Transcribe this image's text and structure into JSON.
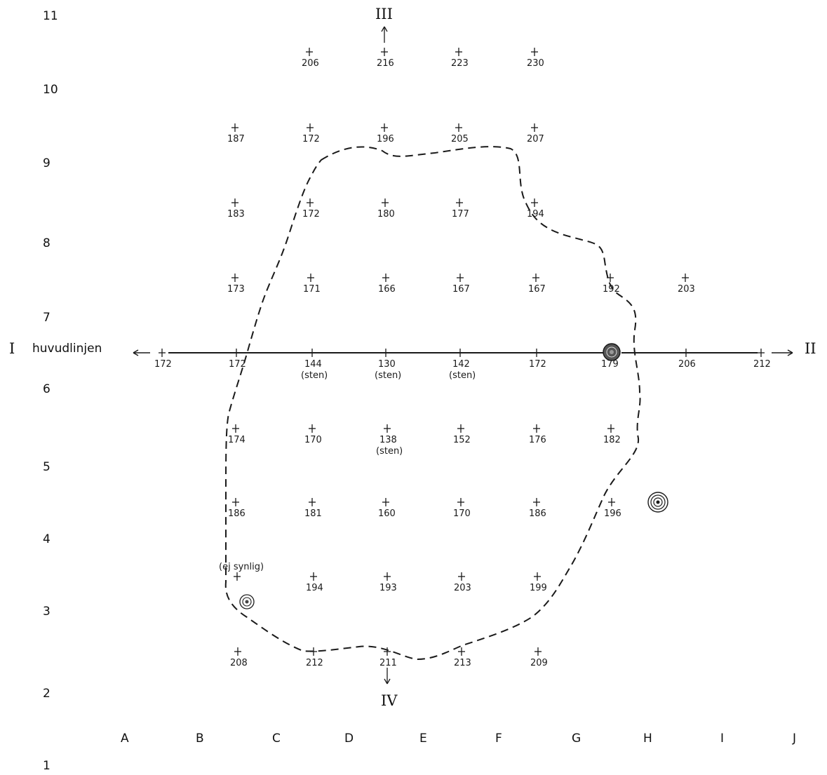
{
  "row_labels": [
    "11",
    "10",
    "9",
    "8",
    "7",
    "6",
    "5",
    "4",
    "3",
    "2",
    "1"
  ],
  "column_labels": [
    "A",
    "B",
    "C",
    "D",
    "E",
    "F",
    "G",
    "H",
    "I",
    "J"
  ],
  "main_line": {
    "left_roman": "I",
    "label": "huvudlinjen",
    "right_roman": "II"
  },
  "direction_markers": {
    "top": "III",
    "bottom": "IV"
  },
  "measurements": [
    {
      "id": "m-206a",
      "value": "206"
    },
    {
      "id": "m-216",
      "value": "216"
    },
    {
      "id": "m-223",
      "value": "223"
    },
    {
      "id": "m-230",
      "value": "230"
    },
    {
      "id": "m-187",
      "value": "187"
    },
    {
      "id": "m-172a",
      "value": "172"
    },
    {
      "id": "m-196a",
      "value": "196"
    },
    {
      "id": "m-205",
      "value": "205"
    },
    {
      "id": "m-207",
      "value": "207"
    },
    {
      "id": "m-183",
      "value": "183"
    },
    {
      "id": "m-172b",
      "value": "172"
    },
    {
      "id": "m-180",
      "value": "180"
    },
    {
      "id": "m-177",
      "value": "177"
    },
    {
      "id": "m-194a",
      "value": "194"
    },
    {
      "id": "m-173",
      "value": "173"
    },
    {
      "id": "m-171",
      "value": "171"
    },
    {
      "id": "m-166",
      "value": "166"
    },
    {
      "id": "m-167a",
      "value": "167"
    },
    {
      "id": "m-167b",
      "value": "167"
    },
    {
      "id": "m-192",
      "value": "192"
    },
    {
      "id": "m-203a",
      "value": "203"
    },
    {
      "id": "m-172c",
      "value": "172"
    },
    {
      "id": "m-172d",
      "value": "172"
    },
    {
      "id": "m-144",
      "value": "144",
      "note": "(sten)"
    },
    {
      "id": "m-130",
      "value": "130",
      "note": "(sten)"
    },
    {
      "id": "m-142",
      "value": "142",
      "note": "(sten)"
    },
    {
      "id": "m-172e",
      "value": "172"
    },
    {
      "id": "m-179",
      "value": "179"
    },
    {
      "id": "m-206b",
      "value": "206"
    },
    {
      "id": "m-212a",
      "value": "212"
    },
    {
      "id": "m-174",
      "value": "174"
    },
    {
      "id": "m-170a",
      "value": "170"
    },
    {
      "id": "m-138",
      "value": "138",
      "note": "(sten)"
    },
    {
      "id": "m-152",
      "value": "152"
    },
    {
      "id": "m-176",
      "value": "176"
    },
    {
      "id": "m-182",
      "value": "182"
    },
    {
      "id": "m-186a",
      "value": "186"
    },
    {
      "id": "m-181",
      "value": "181"
    },
    {
      "id": "m-160",
      "value": "160"
    },
    {
      "id": "m-170b",
      "value": "170"
    },
    {
      "id": "m-186b",
      "value": "186"
    },
    {
      "id": "m-196b",
      "value": "196"
    },
    {
      "id": "m-ej",
      "note_above": "(ej synlig)"
    },
    {
      "id": "m-194b",
      "value": "194"
    },
    {
      "id": "m-193",
      "value": "193"
    },
    {
      "id": "m-203b",
      "value": "203"
    },
    {
      "id": "m-199",
      "value": "199"
    },
    {
      "id": "m-208",
      "value": "208"
    },
    {
      "id": "m-212b",
      "value": "212"
    },
    {
      "id": "m-211",
      "value": "211"
    },
    {
      "id": "m-213",
      "value": "213"
    },
    {
      "id": "m-209",
      "value": "209"
    }
  ],
  "symbols": [
    "tree-symbol",
    "tree-symbol",
    "tree-symbol"
  ]
}
